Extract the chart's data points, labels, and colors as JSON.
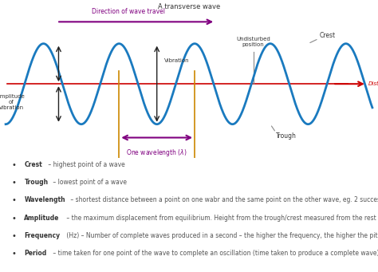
{
  "title": "A transverse wave",
  "wave_color": "#1a7abf",
  "axis_line_color": "#cc0000",
  "direction_arrow_color": "#800080",
  "wavelength_arrow_color": "#800080",
  "vertical_line_color": "#cc8800",
  "amplitude_arrow_color": "#222222",
  "distance_arrow_color": "#cc0000",
  "undisturbed_line_color": "#888888",
  "background_color": "#ffffff",
  "bullet_items": [
    [
      "Crest",
      " – highest point of a wave"
    ],
    [
      "Trough",
      " – lowest point of a wave"
    ],
    [
      "Wavelength",
      " – shortest distance between a point on one wabr and the same point on the other wave, eg. 2 successive troughs or two successive crests"
    ],
    [
      "Amplitude",
      " – the maximum displacement from equilibrium. Height from the trough/crest measured from the rest position (equilibrium). (the ‘loudness’ of the wave)"
    ],
    [
      "Frequency",
      " (Hz) – Number of complete waves produced in a second – the higher the frequency, the higher the pitch of sound"
    ],
    [
      "Period",
      " – time taken for one point of the wave to complete an oscillation (time taken to produce a complete wave). Measured in seconds"
    ]
  ]
}
